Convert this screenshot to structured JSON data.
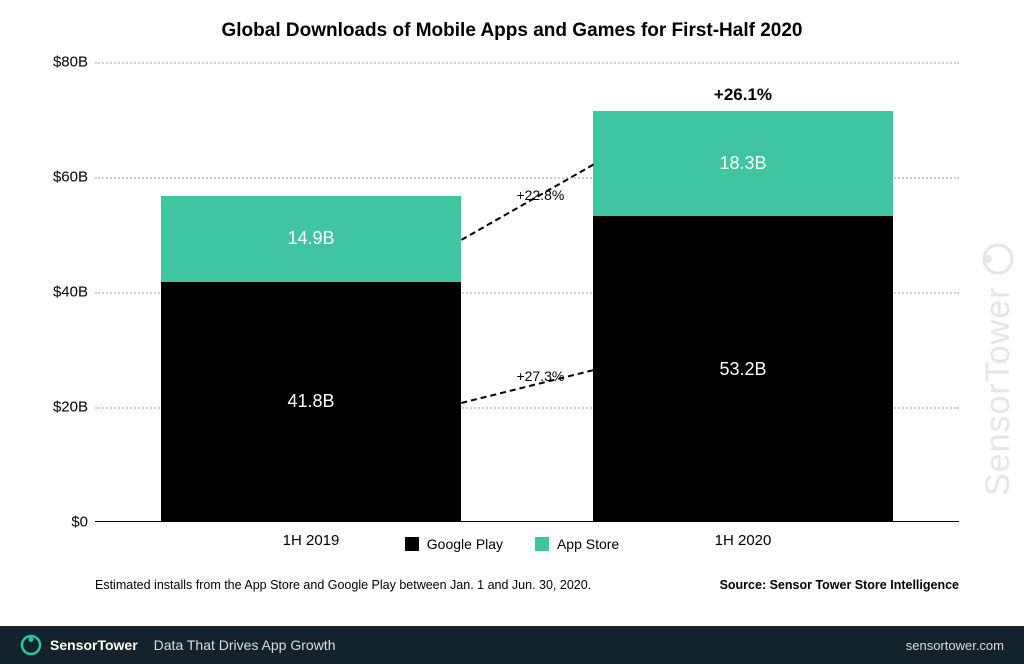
{
  "chart": {
    "type": "stacked-bar",
    "title": "Global Downloads of Mobile Apps and Games for First-Half 2020",
    "title_fontsize": 19,
    "background_color": "#ffffff",
    "grid_color": "#cfcfcf",
    "y": {
      "min": 0,
      "max": 80,
      "step": 20,
      "unit_prefix": "$",
      "unit_suffix": "B",
      "ticks": [
        "$0",
        "$20B",
        "$40B",
        "$60B",
        "$80B"
      ],
      "label_fontsize": 15
    },
    "categories": [
      "1H 2019",
      "1H 2020"
    ],
    "series": [
      {
        "key": "google_play",
        "name": "Google Play",
        "color": "#000000"
      },
      {
        "key": "app_store",
        "name": "App Store",
        "color": "#3fc6a0"
      }
    ],
    "bars": [
      {
        "category": "1H 2019",
        "google_play": 41.8,
        "app_store": 14.9,
        "labels": {
          "google_play": "41.8B",
          "app_store": "14.9B"
        }
      },
      {
        "category": "1H 2020",
        "google_play": 53.2,
        "app_store": 18.3,
        "labels": {
          "google_play": "53.2B",
          "app_store": "18.3B"
        },
        "top_label": "+26.1%"
      }
    ],
    "bar_width_ratio": 0.78,
    "value_label_color": "#ffffff",
    "value_label_fontsize": 18,
    "top_label_fontsize": 17,
    "connectors": [
      {
        "from_bar": 0,
        "to_bar": 1,
        "level": "google_play_mid",
        "label": "+27.3%"
      },
      {
        "from_bar": 0,
        "to_bar": 1,
        "level": "app_store_mid",
        "label": "+22.8%"
      }
    ],
    "connector_dash": "2px dashed #000000",
    "connector_label_fontsize": 14,
    "legend": {
      "items": [
        "Google Play",
        "App Store"
      ],
      "colors": [
        "#000000",
        "#3fc6a0"
      ],
      "fontsize": 14
    },
    "footnote": "Estimated installs from the App Store and Google Play between Jan. 1 and Jun. 30, 2020.",
    "source": "Source: Sensor Tower Store Intelligence",
    "footnote_fontsize": 12.5
  },
  "watermark": {
    "text": "SensorTower",
    "color": "#e6e6e6"
  },
  "footer": {
    "brand": "SensorTower",
    "brand_color": "#27c6a6",
    "tagline": "Data That Drives App Growth",
    "url": "sensortower.com",
    "background": "#14222b"
  }
}
